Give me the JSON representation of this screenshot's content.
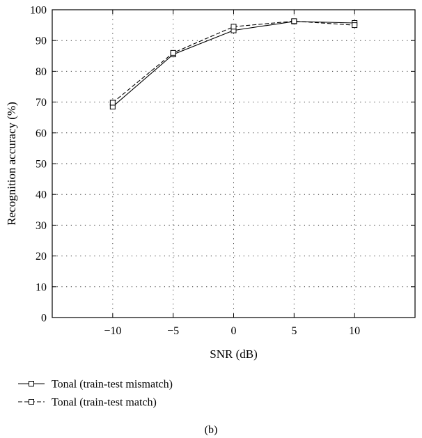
{
  "chart_data": {
    "type": "line",
    "x": [
      -10,
      -5,
      0,
      5,
      10
    ],
    "xlim": [
      -15,
      15
    ],
    "ylim": [
      0,
      100
    ],
    "xticks": [
      -10,
      -5,
      0,
      5,
      10
    ],
    "xtick_labels": [
      "−10",
      "−5",
      "0",
      "5",
      "10"
    ],
    "yticks": [
      0,
      10,
      20,
      30,
      40,
      50,
      60,
      70,
      80,
      90,
      100
    ],
    "xlabel": "SNR (dB)",
    "ylabel": "Recognition accuracy (%)",
    "grid": true,
    "legend_placement": "below",
    "series": [
      {
        "name": "Tonal (train-test mismatch)",
        "line_style": "solid",
        "marker": "square",
        "color": "#000000",
        "values": [
          68.5,
          85.5,
          93.3,
          96.2,
          95.7
        ]
      },
      {
        "name": "Tonal (train-test match)",
        "line_style": "dashed",
        "marker": "square",
        "color": "#000000",
        "values": [
          69.8,
          86.0,
          94.5,
          96.3,
          95.0
        ]
      }
    ]
  },
  "caption": "(b)"
}
